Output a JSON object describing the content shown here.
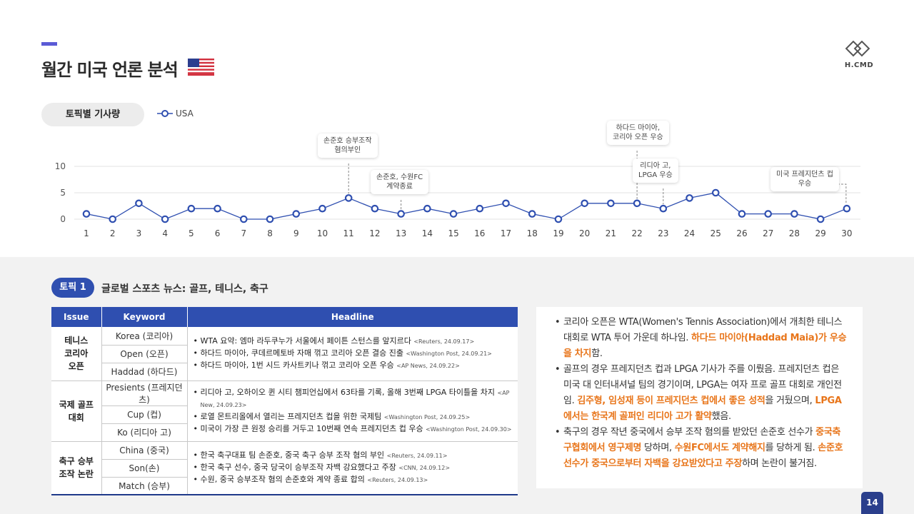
{
  "header": {
    "title": "월간 미국 언론 분석",
    "logo_text": "H.CMD",
    "flag_icon": "us-flag-icon"
  },
  "chart_section": {
    "pill_label": "토픽별 기사량",
    "legend_label": "USA"
  },
  "chart_data": {
    "type": "line",
    "x": [
      1,
      2,
      3,
      4,
      5,
      6,
      7,
      8,
      9,
      10,
      11,
      12,
      13,
      14,
      15,
      16,
      17,
      18,
      19,
      20,
      21,
      22,
      23,
      24,
      25,
      26,
      27,
      28,
      29,
      30
    ],
    "series": [
      {
        "name": "USA",
        "values": [
          1,
          0,
          3,
          0,
          2,
          2,
          0,
          0,
          1,
          2,
          4,
          2,
          1,
          2,
          1,
          2,
          3,
          1,
          0,
          3,
          3,
          3,
          2,
          4,
          5,
          1,
          1,
          1,
          0,
          2
        ]
      }
    ],
    "yticks": [
      0,
      5,
      10
    ],
    "ylim": [
      0,
      10
    ],
    "color": "#2f4fb0",
    "annotations": [
      {
        "x": 11,
        "text": [
          "손준호 승부조작",
          "혐의부인"
        ]
      },
      {
        "x": 13,
        "text": [
          "손준호, 수원FC",
          "계약종료"
        ]
      },
      {
        "x": 22,
        "text": [
          "하다드 마이아,",
          "코리아 오픈 우승"
        ]
      },
      {
        "x": 23,
        "text": [
          "리디아 고,",
          "LPGA 우승"
        ]
      },
      {
        "x": 30,
        "text": [
          "미국 프레지던츠 컵",
          "우승"
        ]
      }
    ]
  },
  "topic": {
    "badge": "토픽 1",
    "title": "글로벌 스포츠 뉴스: 골프, 테니스, 축구"
  },
  "table": {
    "headers": [
      "Issue",
      "Keyword",
      "Headline"
    ],
    "groups": [
      {
        "issue": [
          "테니스",
          "코리아",
          "오픈"
        ],
        "keywords": [
          "Korea (코리아)",
          "Open (오픈)",
          "Haddad (하다드)"
        ],
        "headlines": [
          {
            "text": "WTA 요약: 엠마 라두쿠누가 서울에서 페이튼 스턴스를 앞지르다",
            "src": "<Reuters, 24.09.17>"
          },
          {
            "text": "하다드 마이아, 쿠데르메토바 자매 꺾고 코리아 오픈 결승 진출",
            "src": "<Washington Post, 24.09.21>"
          },
          {
            "text": "하다드 마이아, 1번 시드 카사트키나 꺾고 코리아 오픈 우승",
            "src": "<AP News, 24.09.22>"
          }
        ]
      },
      {
        "issue": [
          "국제 골프",
          "대회"
        ],
        "keywords": [
          "Presients (프레지던츠)",
          "Cup (컵)",
          "Ko (리디아 고)"
        ],
        "headlines": [
          {
            "text": "리디아 고, 오하이오 퀸 시티 챔피언십에서 63타를 기록, 올해 3번째 LPGA 타이틀을 차지",
            "src": "<AP New, 24.09.23>"
          },
          {
            "text": "로열 몬트리올에서 열리는 프레지던츠 컵을 위한 국제팀",
            "src": "<Washington Post, 24.09.25>"
          },
          {
            "text": "미국이 가장 큰 원정 승리를 거두고 10번째 연속 프레지던츠 컵 우승",
            "src": "<Washington Post, 24.09.30>"
          }
        ]
      },
      {
        "issue": [
          "축구 승부",
          "조작 논란"
        ],
        "keywords": [
          "China (중국)",
          "Son(손)",
          "Match (승부)"
        ],
        "headlines": [
          {
            "text": "한국 축구대표 팀 손준호, 중국 축구 승부 조작 혐의 부인",
            "src": "<Reuters, 24.09.11>"
          },
          {
            "text": "한국 축구 선수, 중국 당국이 승부조작 자백 강요했다고 주장",
            "src": "<CNN, 24.09.12>"
          },
          {
            "text": "수원, 중국 승부조작 혐의 손준호와 계약 종료 합의",
            "src": "<Reuters, 24.09.13>"
          }
        ]
      }
    ]
  },
  "summary": {
    "items": [
      [
        {
          "t": "코리아 오픈은 WTA(Women's Tennis Association)에서 개최한 테니스 대회로 WTA 투어 가운데 하나임. ",
          "h": false
        },
        {
          "t": "하다드 마이아(Haddad Maia)가 우승을 차지",
          "h": true
        },
        {
          "t": "함.",
          "h": false
        }
      ],
      [
        {
          "t": "골프의 경우 프레지던츠 컵과 LPGA 기사가 주를 이뤘음. 프레지던츠 컵은 미국 대 인터내셔널 팀의 경기이며, LPGA는 여자 프로 골프 대회로 개인전임. ",
          "h": false
        },
        {
          "t": "김주형, 임성재 등이 프레지던츠 컵에서 좋은 성적",
          "h": true
        },
        {
          "t": "을 거뒀으며, ",
          "h": false
        },
        {
          "t": "LPGA에서는 한국계 골퍼인 리디아 고가 활약",
          "h": true
        },
        {
          "t": "했음.",
          "h": false
        }
      ],
      [
        {
          "t": "축구의 경우 작년 중국에서 승부 조작 혐의를 받았던 손준호 선수가 ",
          "h": false
        },
        {
          "t": "중국축구협회에서 영구제명",
          "h": true
        },
        {
          "t": " 당하며, ",
          "h": false
        },
        {
          "t": "수원FC에서도 계약해지",
          "h": true
        },
        {
          "t": "를 당하게 됨. ",
          "h": false
        },
        {
          "t": "손준호 선수가 중국으로부터 자백을 강요받았다고 주장",
          "h": true
        },
        {
          "t": "하며 논란이 불거짐.",
          "h": false
        }
      ]
    ]
  },
  "page_number": "14"
}
